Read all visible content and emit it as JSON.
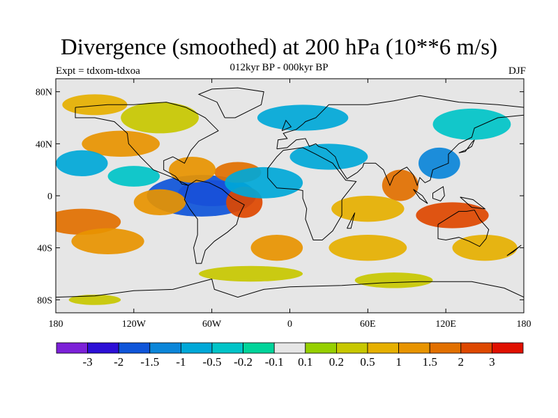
{
  "title": "Divergence (smoothed) at 200 hPa (10**6 m/s)",
  "subtitle": "012kyr BP - 000kyr BP",
  "left_label": "Expt = tdxom-tdxoa",
  "right_label": "DJF",
  "map": {
    "projection": "cylindrical-equidistant",
    "lon_range": [
      -180,
      180
    ],
    "lat_range": [
      -90,
      90
    ],
    "lon_ticks": [
      {
        "value": -180,
        "label": "180"
      },
      {
        "value": -120,
        "label": "120W"
      },
      {
        "value": -60,
        "label": "60W"
      },
      {
        "value": 0,
        "label": "0"
      },
      {
        "value": 60,
        "label": "60E"
      },
      {
        "value": 120,
        "label": "120E"
      },
      {
        "value": 180,
        "label": "180"
      }
    ],
    "lat_ticks": [
      {
        "value": 80,
        "label": "80N"
      },
      {
        "value": 40,
        "label": "40N"
      },
      {
        "value": 0,
        "label": "0"
      },
      {
        "value": -40,
        "label": "40S"
      },
      {
        "value": -80,
        "label": "80S"
      }
    ],
    "background_color": "#e6e6e6",
    "coastline_color": "#000000"
  },
  "colorbar": {
    "colors": [
      "#7c21d8",
      "#2c0fd6",
      "#0f55d9",
      "#0b86d9",
      "#00a8d8",
      "#00c4c8",
      "#00d49a",
      "#e6e6e6",
      "#96d000",
      "#c8c800",
      "#e6b000",
      "#e89400",
      "#e27000",
      "#de4800",
      "#e01000"
    ],
    "labels": [
      "-3",
      "-2",
      "-1.5",
      "-1",
      "-0.5",
      "-0.2",
      "-0.1",
      "0.1",
      "0.2",
      "0.5",
      "1",
      "1.5",
      "2",
      "3"
    ]
  },
  "field_blobs": [
    {
      "lon": -60,
      "lat": 2,
      "rx": 26,
      "ry": 10,
      "level": 0
    },
    {
      "lon": -68,
      "lat": 0,
      "rx": 42,
      "ry": 16,
      "level": 2
    },
    {
      "lon": -160,
      "lat": -20,
      "rx": 30,
      "ry": 10,
      "level": 12
    },
    {
      "lon": -140,
      "lat": -35,
      "rx": 28,
      "ry": 10,
      "level": 11
    },
    {
      "lon": -100,
      "lat": -5,
      "rx": 20,
      "ry": 10,
      "level": 11
    },
    {
      "lon": -35,
      "lat": -5,
      "rx": 14,
      "ry": 12,
      "level": 13
    },
    {
      "lon": -40,
      "lat": 18,
      "rx": 18,
      "ry": 8,
      "level": 12
    },
    {
      "lon": -75,
      "lat": 20,
      "rx": 18,
      "ry": 10,
      "level": 11
    },
    {
      "lon": 85,
      "lat": 8,
      "rx": 14,
      "ry": 12,
      "level": 12
    },
    {
      "lon": 125,
      "lat": -15,
      "rx": 28,
      "ry": 10,
      "level": 13
    },
    {
      "lon": 115,
      "lat": 25,
      "rx": 16,
      "ry": 12,
      "level": 3
    },
    {
      "lon": -20,
      "lat": 10,
      "rx": 30,
      "ry": 12,
      "level": 4
    },
    {
      "lon": 30,
      "lat": 30,
      "rx": 30,
      "ry": 10,
      "level": 4
    },
    {
      "lon": -130,
      "lat": 40,
      "rx": 30,
      "ry": 10,
      "level": 11
    },
    {
      "lon": -160,
      "lat": 25,
      "rx": 20,
      "ry": 10,
      "level": 4
    },
    {
      "lon": -120,
      "lat": 15,
      "rx": 20,
      "ry": 8,
      "level": 5
    },
    {
      "lon": 60,
      "lat": -10,
      "rx": 28,
      "ry": 10,
      "level": 10
    },
    {
      "lon": -10,
      "lat": -40,
      "rx": 20,
      "ry": 10,
      "level": 11
    },
    {
      "lon": 60,
      "lat": -40,
      "rx": 30,
      "ry": 10,
      "level": 10
    },
    {
      "lon": 150,
      "lat": -40,
      "rx": 25,
      "ry": 10,
      "level": 10
    },
    {
      "lon": 10,
      "lat": 60,
      "rx": 35,
      "ry": 10,
      "level": 4
    },
    {
      "lon": 140,
      "lat": 55,
      "rx": 30,
      "ry": 12,
      "level": 5
    },
    {
      "lon": -100,
      "lat": 60,
      "rx": 30,
      "ry": 12,
      "level": 9
    },
    {
      "lon": -150,
      "lat": 70,
      "rx": 25,
      "ry": 8,
      "level": 10
    },
    {
      "lon": -30,
      "lat": -60,
      "rx": 40,
      "ry": 6,
      "level": 9
    },
    {
      "lon": 80,
      "lat": -65,
      "rx": 30,
      "ry": 6,
      "level": 9
    },
    {
      "lon": -150,
      "lat": -80,
      "rx": 20,
      "ry": 4,
      "level": 9
    }
  ]
}
